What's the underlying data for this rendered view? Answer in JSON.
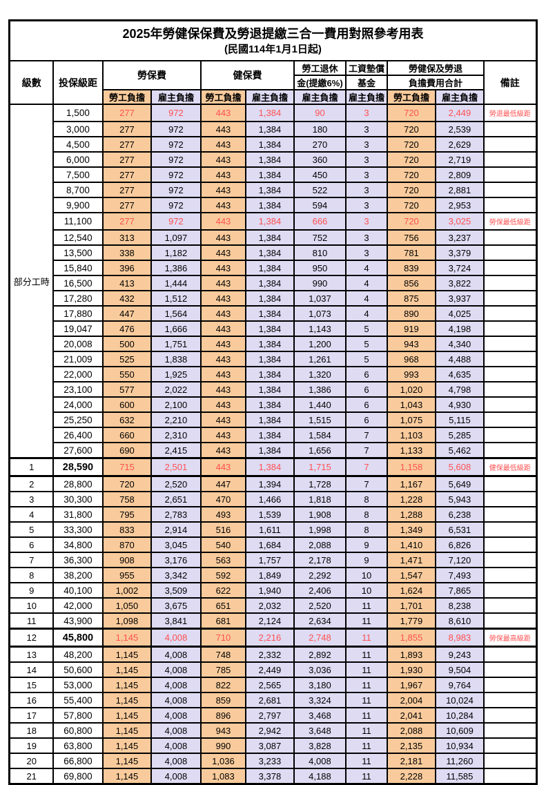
{
  "title": "2025年勞健保保費及勞退提繳三合一費用對照參考用表",
  "subtitle": "(民國114年1月1日起)",
  "columns": {
    "grade": "級數",
    "bracket": "投保級距",
    "labor_insurance": "勞保費",
    "health_insurance": "健保費",
    "pension_line1": "勞工退休",
    "pension_line2": "金(提繳6%)",
    "wage_fund_line1": "工資墊償",
    "wage_fund_line2": "基金",
    "combined_line1": "勞健保及勞退",
    "combined_line2": "負擔費用合計",
    "note": "備註",
    "employee_burden": "勞工負擔",
    "employer_burden": "雇主負擔"
  },
  "part_time_label": "部分工時",
  "colors": {
    "employee_bg": "#F9CB9C",
    "employer_bg": "#DEDBF3",
    "highlight_text": "#FF5050"
  },
  "rows": [
    {
      "grade": "",
      "bracket": "1,500",
      "labor_emp": "277",
      "labor_er": "972",
      "health_emp": "443",
      "health_er": "1,384",
      "pension": "90",
      "wage_fund": "3",
      "total_emp": "720",
      "total_er": "2,449",
      "note": "勞退最低級距",
      "highlight": true,
      "em": false
    },
    {
      "grade": "",
      "bracket": "3,000",
      "labor_emp": "277",
      "labor_er": "972",
      "health_emp": "443",
      "health_er": "1,384",
      "pension": "180",
      "wage_fund": "3",
      "total_emp": "720",
      "total_er": "2,539",
      "note": "",
      "highlight": false,
      "em": false
    },
    {
      "grade": "",
      "bracket": "4,500",
      "labor_emp": "277",
      "labor_er": "972",
      "health_emp": "443",
      "health_er": "1,384",
      "pension": "270",
      "wage_fund": "3",
      "total_emp": "720",
      "total_er": "2,629",
      "note": "",
      "highlight": false,
      "em": false
    },
    {
      "grade": "",
      "bracket": "6,000",
      "labor_emp": "277",
      "labor_er": "972",
      "health_emp": "443",
      "health_er": "1,384",
      "pension": "360",
      "wage_fund": "3",
      "total_emp": "720",
      "total_er": "2,719",
      "note": "",
      "highlight": false,
      "em": false
    },
    {
      "grade": "",
      "bracket": "7,500",
      "labor_emp": "277",
      "labor_er": "972",
      "health_emp": "443",
      "health_er": "1,384",
      "pension": "450",
      "wage_fund": "3",
      "total_emp": "720",
      "total_er": "2,809",
      "note": "",
      "highlight": false,
      "em": false
    },
    {
      "grade": "",
      "bracket": "8,700",
      "labor_emp": "277",
      "labor_er": "972",
      "health_emp": "443",
      "health_er": "1,384",
      "pension": "522",
      "wage_fund": "3",
      "total_emp": "720",
      "total_er": "2,881",
      "note": "",
      "highlight": false,
      "em": false
    },
    {
      "grade": "",
      "bracket": "9,900",
      "labor_emp": "277",
      "labor_er": "972",
      "health_emp": "443",
      "health_er": "1,384",
      "pension": "594",
      "wage_fund": "3",
      "total_emp": "720",
      "total_er": "2,953",
      "note": "",
      "highlight": false,
      "em": false
    },
    {
      "grade": "",
      "bracket": "11,100",
      "labor_emp": "277",
      "labor_er": "972",
      "health_emp": "443",
      "health_er": "1,384",
      "pension": "666",
      "wage_fund": "3",
      "total_emp": "720",
      "total_er": "3,025",
      "note": "勞保最低級距",
      "highlight": true,
      "em": false
    },
    {
      "grade": "",
      "bracket": "12,540",
      "labor_emp": "313",
      "labor_er": "1,097",
      "health_emp": "443",
      "health_er": "1,384",
      "pension": "752",
      "wage_fund": "3",
      "total_emp": "756",
      "total_er": "3,237",
      "note": "",
      "highlight": false,
      "em": false
    },
    {
      "grade": "",
      "bracket": "13,500",
      "labor_emp": "338",
      "labor_er": "1,182",
      "health_emp": "443",
      "health_er": "1,384",
      "pension": "810",
      "wage_fund": "3",
      "total_emp": "781",
      "total_er": "3,379",
      "note": "",
      "highlight": false,
      "em": false
    },
    {
      "grade": "",
      "bracket": "15,840",
      "labor_emp": "396",
      "labor_er": "1,386",
      "health_emp": "443",
      "health_er": "1,384",
      "pension": "950",
      "wage_fund": "4",
      "total_emp": "839",
      "total_er": "3,724",
      "note": "",
      "highlight": false,
      "em": false
    },
    {
      "grade": "",
      "bracket": "16,500",
      "labor_emp": "413",
      "labor_er": "1,444",
      "health_emp": "443",
      "health_er": "1,384",
      "pension": "990",
      "wage_fund": "4",
      "total_emp": "856",
      "total_er": "3,822",
      "note": "",
      "highlight": false,
      "em": false
    },
    {
      "grade": "",
      "bracket": "17,280",
      "labor_emp": "432",
      "labor_er": "1,512",
      "health_emp": "443",
      "health_er": "1,384",
      "pension": "1,037",
      "wage_fund": "4",
      "total_emp": "875",
      "total_er": "3,937",
      "note": "",
      "highlight": false,
      "em": false
    },
    {
      "grade": "",
      "bracket": "17,880",
      "labor_emp": "447",
      "labor_er": "1,564",
      "health_emp": "443",
      "health_er": "1,384",
      "pension": "1,073",
      "wage_fund": "4",
      "total_emp": "890",
      "total_er": "4,025",
      "note": "",
      "highlight": false,
      "em": false
    },
    {
      "grade": "",
      "bracket": "19,047",
      "labor_emp": "476",
      "labor_er": "1,666",
      "health_emp": "443",
      "health_er": "1,384",
      "pension": "1,143",
      "wage_fund": "5",
      "total_emp": "919",
      "total_er": "4,198",
      "note": "",
      "highlight": false,
      "em": false
    },
    {
      "grade": "",
      "bracket": "20,008",
      "labor_emp": "500",
      "labor_er": "1,751",
      "health_emp": "443",
      "health_er": "1,384",
      "pension": "1,200",
      "wage_fund": "5",
      "total_emp": "943",
      "total_er": "4,340",
      "note": "",
      "highlight": false,
      "em": false
    },
    {
      "grade": "",
      "bracket": "21,009",
      "labor_emp": "525",
      "labor_er": "1,838",
      "health_emp": "443",
      "health_er": "1,384",
      "pension": "1,261",
      "wage_fund": "5",
      "total_emp": "968",
      "total_er": "4,488",
      "note": "",
      "highlight": false,
      "em": false
    },
    {
      "grade": "",
      "bracket": "22,000",
      "labor_emp": "550",
      "labor_er": "1,925",
      "health_emp": "443",
      "health_er": "1,384",
      "pension": "1,320",
      "wage_fund": "6",
      "total_emp": "993",
      "total_er": "4,635",
      "note": "",
      "highlight": false,
      "em": false
    },
    {
      "grade": "",
      "bracket": "23,100",
      "labor_emp": "577",
      "labor_er": "2,022",
      "health_emp": "443",
      "health_er": "1,384",
      "pension": "1,386",
      "wage_fund": "6",
      "total_emp": "1,020",
      "total_er": "4,798",
      "note": "",
      "highlight": false,
      "em": false
    },
    {
      "grade": "",
      "bracket": "24,000",
      "labor_emp": "600",
      "labor_er": "2,100",
      "health_emp": "443",
      "health_er": "1,384",
      "pension": "1,440",
      "wage_fund": "6",
      "total_emp": "1,043",
      "total_er": "4,930",
      "note": "",
      "highlight": false,
      "em": false
    },
    {
      "grade": "",
      "bracket": "25,250",
      "labor_emp": "632",
      "labor_er": "2,210",
      "health_emp": "443",
      "health_er": "1,384",
      "pension": "1,515",
      "wage_fund": "6",
      "total_emp": "1,075",
      "total_er": "5,115",
      "note": "",
      "highlight": false,
      "em": false
    },
    {
      "grade": "",
      "bracket": "26,400",
      "labor_emp": "660",
      "labor_er": "2,310",
      "health_emp": "443",
      "health_er": "1,384",
      "pension": "1,584",
      "wage_fund": "7",
      "total_emp": "1,103",
      "total_er": "5,285",
      "note": "",
      "highlight": false,
      "em": false
    },
    {
      "grade": "",
      "bracket": "27,600",
      "labor_emp": "690",
      "labor_er": "2,415",
      "health_emp": "443",
      "health_er": "1,384",
      "pension": "1,656",
      "wage_fund": "7",
      "total_emp": "1,133",
      "total_er": "5,462",
      "note": "",
      "highlight": false,
      "em": false
    },
    {
      "grade": "1",
      "bracket": "28,590",
      "labor_emp": "715",
      "labor_er": "2,501",
      "health_emp": "443",
      "health_er": "1,384",
      "pension": "1,715",
      "wage_fund": "7",
      "total_emp": "1,158",
      "total_er": "5,608",
      "note": "健保最低級距",
      "highlight": true,
      "em": true
    },
    {
      "grade": "2",
      "bracket": "28,800",
      "labor_emp": "720",
      "labor_er": "2,520",
      "health_emp": "447",
      "health_er": "1,394",
      "pension": "1,728",
      "wage_fund": "7",
      "total_emp": "1,167",
      "total_er": "5,649",
      "note": "",
      "highlight": false,
      "em": false
    },
    {
      "grade": "3",
      "bracket": "30,300",
      "labor_emp": "758",
      "labor_er": "2,651",
      "health_emp": "470",
      "health_er": "1,466",
      "pension": "1,818",
      "wage_fund": "8",
      "total_emp": "1,228",
      "total_er": "5,943",
      "note": "",
      "highlight": false,
      "em": false
    },
    {
      "grade": "4",
      "bracket": "31,800",
      "labor_emp": "795",
      "labor_er": "2,783",
      "health_emp": "493",
      "health_er": "1,539",
      "pension": "1,908",
      "wage_fund": "8",
      "total_emp": "1,288",
      "total_er": "6,238",
      "note": "",
      "highlight": false,
      "em": false
    },
    {
      "grade": "5",
      "bracket": "33,300",
      "labor_emp": "833",
      "labor_er": "2,914",
      "health_emp": "516",
      "health_er": "1,611",
      "pension": "1,998",
      "wage_fund": "8",
      "total_emp": "1,349",
      "total_er": "6,531",
      "note": "",
      "highlight": false,
      "em": false
    },
    {
      "grade": "6",
      "bracket": "34,800",
      "labor_emp": "870",
      "labor_er": "3,045",
      "health_emp": "540",
      "health_er": "1,684",
      "pension": "2,088",
      "wage_fund": "9",
      "total_emp": "1,410",
      "total_er": "6,826",
      "note": "",
      "highlight": false,
      "em": false
    },
    {
      "grade": "7",
      "bracket": "36,300",
      "labor_emp": "908",
      "labor_er": "3,176",
      "health_emp": "563",
      "health_er": "1,757",
      "pension": "2,178",
      "wage_fund": "9",
      "total_emp": "1,471",
      "total_er": "7,120",
      "note": "",
      "highlight": false,
      "em": false
    },
    {
      "grade": "8",
      "bracket": "38,200",
      "labor_emp": "955",
      "labor_er": "3,342",
      "health_emp": "592",
      "health_er": "1,849",
      "pension": "2,292",
      "wage_fund": "10",
      "total_emp": "1,547",
      "total_er": "7,493",
      "note": "",
      "highlight": false,
      "em": false
    },
    {
      "grade": "9",
      "bracket": "40,100",
      "labor_emp": "1,002",
      "labor_er": "3,509",
      "health_emp": "622",
      "health_er": "1,940",
      "pension": "2,406",
      "wage_fund": "10",
      "total_emp": "1,624",
      "total_er": "7,865",
      "note": "",
      "highlight": false,
      "em": false
    },
    {
      "grade": "10",
      "bracket": "42,000",
      "labor_emp": "1,050",
      "labor_er": "3,675",
      "health_emp": "651",
      "health_er": "2,032",
      "pension": "2,520",
      "wage_fund": "11",
      "total_emp": "1,701",
      "total_er": "8,238",
      "note": "",
      "highlight": false,
      "em": false
    },
    {
      "grade": "11",
      "bracket": "43,900",
      "labor_emp": "1,098",
      "labor_er": "3,841",
      "health_emp": "681",
      "health_er": "2,124",
      "pension": "2,634",
      "wage_fund": "11",
      "total_emp": "1,779",
      "total_er": "8,610",
      "note": "",
      "highlight": false,
      "em": false
    },
    {
      "grade": "12",
      "bracket": "45,800",
      "labor_emp": "1,145",
      "labor_er": "4,008",
      "health_emp": "710",
      "health_er": "2,216",
      "pension": "2,748",
      "wage_fund": "11",
      "total_emp": "1,855",
      "total_er": "8,983",
      "note": "勞保最高級距",
      "highlight": true,
      "em": true
    },
    {
      "grade": "13",
      "bracket": "48,200",
      "labor_emp": "1,145",
      "labor_er": "4,008",
      "health_emp": "748",
      "health_er": "2,332",
      "pension": "2,892",
      "wage_fund": "11",
      "total_emp": "1,893",
      "total_er": "9,243",
      "note": "",
      "highlight": false,
      "em": false
    },
    {
      "grade": "14",
      "bracket": "50,600",
      "labor_emp": "1,145",
      "labor_er": "4,008",
      "health_emp": "785",
      "health_er": "2,449",
      "pension": "3,036",
      "wage_fund": "11",
      "total_emp": "1,930",
      "total_er": "9,504",
      "note": "",
      "highlight": false,
      "em": false
    },
    {
      "grade": "15",
      "bracket": "53,000",
      "labor_emp": "1,145",
      "labor_er": "4,008",
      "health_emp": "822",
      "health_er": "2,565",
      "pension": "3,180",
      "wage_fund": "11",
      "total_emp": "1,967",
      "total_er": "9,764",
      "note": "",
      "highlight": false,
      "em": false
    },
    {
      "grade": "16",
      "bracket": "55,400",
      "labor_emp": "1,145",
      "labor_er": "4,008",
      "health_emp": "859",
      "health_er": "2,681",
      "pension": "3,324",
      "wage_fund": "11",
      "total_emp": "2,004",
      "total_er": "10,024",
      "note": "",
      "highlight": false,
      "em": false
    },
    {
      "grade": "17",
      "bracket": "57,800",
      "labor_emp": "1,145",
      "labor_er": "4,008",
      "health_emp": "896",
      "health_er": "2,797",
      "pension": "3,468",
      "wage_fund": "11",
      "total_emp": "2,041",
      "total_er": "10,284",
      "note": "",
      "highlight": false,
      "em": false
    },
    {
      "grade": "18",
      "bracket": "60,800",
      "labor_emp": "1,145",
      "labor_er": "4,008",
      "health_emp": "943",
      "health_er": "2,942",
      "pension": "3,648",
      "wage_fund": "11",
      "total_emp": "2,088",
      "total_er": "10,609",
      "note": "",
      "highlight": false,
      "em": false
    },
    {
      "grade": "19",
      "bracket": "63,800",
      "labor_emp": "1,145",
      "labor_er": "4,008",
      "health_emp": "990",
      "health_er": "3,087",
      "pension": "3,828",
      "wage_fund": "11",
      "total_emp": "2,135",
      "total_er": "10,934",
      "note": "",
      "highlight": false,
      "em": false
    },
    {
      "grade": "20",
      "bracket": "66,800",
      "labor_emp": "1,145",
      "labor_er": "4,008",
      "health_emp": "1,036",
      "health_er": "3,233",
      "pension": "4,008",
      "wage_fund": "11",
      "total_emp": "2,181",
      "total_er": "11,260",
      "note": "",
      "highlight": false,
      "em": false
    },
    {
      "grade": "21",
      "bracket": "69,800",
      "labor_emp": "1,145",
      "labor_er": "4,008",
      "health_emp": "1,083",
      "health_er": "3,378",
      "pension": "4,188",
      "wage_fund": "11",
      "total_emp": "2,228",
      "total_er": "11,585",
      "note": "",
      "highlight": false,
      "em": false
    }
  ]
}
